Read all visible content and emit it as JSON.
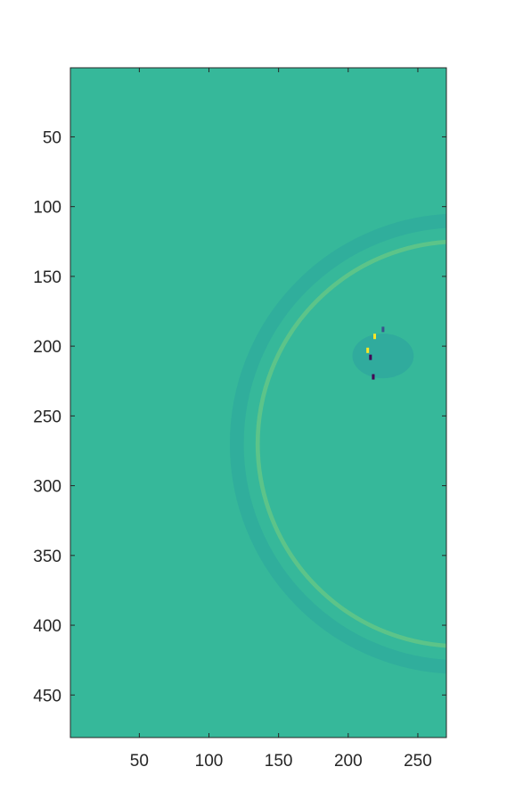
{
  "chart_data": {
    "type": "heatmap",
    "title": "",
    "xlabel": "",
    "ylabel": "",
    "xlim": [
      0.5,
      270.5
    ],
    "ylim": [
      0.5,
      480.5
    ],
    "y_reversed": true,
    "x_ticks": [
      50,
      100,
      150,
      200,
      250
    ],
    "y_ticks": [
      50,
      100,
      150,
      200,
      250,
      300,
      350,
      400,
      450
    ],
    "grid": false,
    "legend": "none",
    "colormap": "viridis",
    "background_value_color": "#36b89a",
    "regions": [
      {
        "kind": "ring",
        "cx": 280,
        "cy": 270,
        "r": 160,
        "width": 10,
        "color": "#30ae9c"
      },
      {
        "kind": "ring",
        "cx": 280,
        "cy": 270,
        "r": 145,
        "width": 3,
        "color": "#5cc489"
      },
      {
        "kind": "ellipse",
        "cx": 225,
        "cy": 207,
        "rx": 22,
        "ry": 16,
        "color": "#30ab9d"
      }
    ],
    "spots": [
      {
        "x": 214,
        "y": 203,
        "color": "#fde725"
      },
      {
        "x": 216,
        "y": 208,
        "color": "#440154"
      },
      {
        "x": 219,
        "y": 193,
        "color": "#fde725"
      },
      {
        "x": 225,
        "y": 188,
        "color": "#3b528b"
      },
      {
        "x": 218,
        "y": 222,
        "color": "#440154"
      }
    ]
  }
}
